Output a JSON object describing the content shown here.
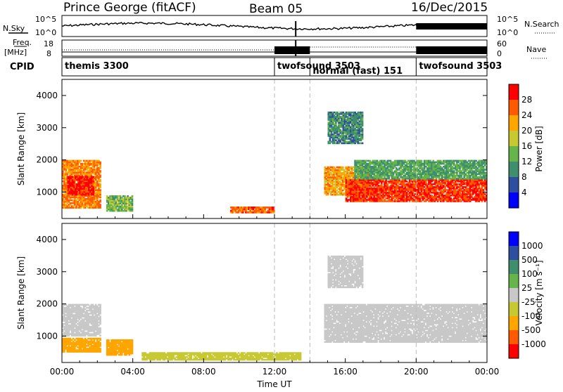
{
  "header": {
    "station": "Prince George (fitACF)",
    "beam": "Beam 05",
    "date": "16/Dec/2015"
  },
  "side_labels": {
    "nsky": "N.Sky",
    "freq_line1": "Freq.",
    "freq_line2": "[MHz]",
    "cpid": "CPID",
    "nsearch": "N.Search",
    "nave": "Nave"
  },
  "noise_axis": {
    "left_top": "10^5",
    "left_bottom": "10^0",
    "right_top": "10^5",
    "right_bottom": "10^0"
  },
  "freq_axis": {
    "left_top": "18",
    "left_bottom": "8",
    "right_top": "60",
    "right_bottom": "0"
  },
  "cpid_segments": [
    {
      "label": "themis 3300",
      "start_hour": 0,
      "end_hour": 12
    },
    {
      "label": "twofsound 3503",
      "start_hour": 12,
      "end_hour": 14
    },
    {
      "label": "normal (fast) 151",
      "start_hour": 14,
      "end_hour": 20
    },
    {
      "label": "twofsound 3503",
      "start_hour": 20,
      "end_hour": 24
    }
  ],
  "colors": {
    "power_scale": [
      "#0000ff",
      "#2e4fa0",
      "#3f8f6f",
      "#66b54a",
      "#c8c832",
      "#ffa500",
      "#ff5a00",
      "#ff0000"
    ],
    "velocity_scale": [
      "#ff0000",
      "#ff5a00",
      "#ffa500",
      "#c8c832",
      "#c8c8c8",
      "#66b54a",
      "#3f8f6f",
      "#2e4fa0",
      "#0000ff"
    ],
    "ground_scatter": "#c8c8c8"
  },
  "chart_data": [
    {
      "type": "heatmap",
      "panel": "power",
      "xlabel": "",
      "ylabel": "Slant Range [km]",
      "xlim": [
        0,
        24
      ],
      "ylim": [
        180,
        4500
      ],
      "yticks": [
        "1000",
        "2000",
        "3000",
        "4000"
      ],
      "colorbar_label": "Power [dB]",
      "colorbar_ticks": [
        "4",
        "8",
        "12",
        "16",
        "20",
        "24",
        "28"
      ],
      "colorbar_range": [
        0,
        32
      ],
      "regions": [
        {
          "t0": 0.0,
          "t1": 2.2,
          "r0": 500,
          "r1": 2000,
          "value": 24
        },
        {
          "t0": 0.3,
          "t1": 1.8,
          "r0": 900,
          "r1": 1500,
          "value": 30
        },
        {
          "t0": 2.5,
          "t1": 4.0,
          "r0": 400,
          "r1": 900,
          "value": 14
        },
        {
          "t0": 9.5,
          "t1": 12.0,
          "r0": 350,
          "r1": 550,
          "value": 26
        },
        {
          "t0": 14.8,
          "t1": 17.5,
          "r0": 900,
          "r1": 1800,
          "value": 22
        },
        {
          "t0": 16.0,
          "t1": 24.0,
          "r0": 700,
          "r1": 1400,
          "value": 28
        },
        {
          "t0": 16.5,
          "t1": 24.0,
          "r0": 1400,
          "r1": 2000,
          "value": 12
        },
        {
          "t0": 15.0,
          "t1": 17.0,
          "r0": 2500,
          "r1": 3500,
          "value": 10
        }
      ]
    },
    {
      "type": "heatmap",
      "panel": "velocity",
      "xlabel": "Time UT",
      "ylabel": "Slant Range [km]",
      "xlim": [
        0,
        24
      ],
      "ylim": [
        180,
        4500
      ],
      "xticks": [
        "00:00",
        "04:00",
        "08:00",
        "12:00",
        "16:00",
        "20:00",
        "00:00"
      ],
      "yticks": [
        "1000",
        "2000",
        "3000",
        "4000"
      ],
      "colorbar_label": "Velocity [m s⁻¹]",
      "colorbar_ticks": [
        "1000",
        "500",
        "100",
        "25",
        "-25",
        "-100",
        "-500",
        "-1000"
      ],
      "regions": [
        {
          "t0": 0.0,
          "t1": 2.2,
          "r0": 500,
          "r1": 950,
          "value": -300
        },
        {
          "t0": 0.0,
          "t1": 2.2,
          "r0": 1000,
          "r1": 2000,
          "value": 0
        },
        {
          "t0": 2.5,
          "t1": 4.0,
          "r0": 400,
          "r1": 900,
          "value": -150
        },
        {
          "t0": 4.5,
          "t1": 13.5,
          "r0": 250,
          "r1": 500,
          "value": -60
        },
        {
          "t0": 14.8,
          "t1": 24.0,
          "r0": 800,
          "r1": 2000,
          "value": 0
        },
        {
          "t0": 15.0,
          "t1": 17.0,
          "r0": 2500,
          "r1": 3500,
          "value": 0
        }
      ]
    }
  ]
}
